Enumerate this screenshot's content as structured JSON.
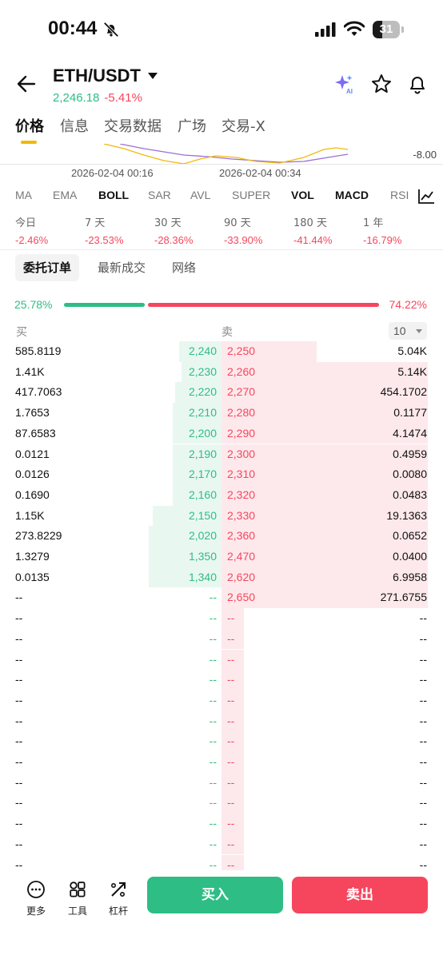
{
  "status_bar": {
    "time": "00:44",
    "battery": "31",
    "icons": [
      "bell-slash-icon",
      "signal-icon",
      "wifi-icon",
      "battery-icon"
    ]
  },
  "header": {
    "pair": "ETH/USDT",
    "price": "2,246.18",
    "change": "-5.41%",
    "icons": [
      "back-arrow-icon",
      "caret-down-icon",
      "ai-sparkle-icon",
      "star-icon",
      "bell-icon"
    ]
  },
  "main_tabs": [
    "价格",
    "信息",
    "交易数据",
    "广场",
    "交易-X"
  ],
  "chart": {
    "y_label": "-8.00",
    "x_labels": [
      "2026-02-04 00:16",
      "2026-02-04 00:34"
    ]
  },
  "indicators": [
    "MA",
    "EMA",
    "BOLL",
    "SAR",
    "AVL",
    "SUPER",
    "VOL",
    "MACD",
    "RSI"
  ],
  "performance": [
    {
      "label": "今日",
      "value": "-2.46%"
    },
    {
      "label": "7 天",
      "value": "-23.53%"
    },
    {
      "label": "30 天",
      "value": "-28.36%"
    },
    {
      "label": "90 天",
      "value": "-33.90%"
    },
    {
      "label": "180 天",
      "value": "-41.44%"
    },
    {
      "label": "1 年",
      "value": "-16.79%"
    }
  ],
  "sub_tabs": [
    "委托订单",
    "最新成交",
    "网络"
  ],
  "ratio": {
    "buy": "25.78%",
    "sell": "74.22%",
    "buy_fraction": 0.2578
  },
  "orderbook": {
    "buy_header": "买",
    "sell_header": "卖",
    "depth": "10",
    "rows": [
      {
        "bid_qty": "585.8119",
        "bid_price": "2,240",
        "ask_price": "2,250",
        "ask_qty": "5.04K",
        "bid_depth": 0.19,
        "ask_depth": 0.43
      },
      {
        "bid_qty": "1.41K",
        "bid_price": "2,230",
        "ask_price": "2,260",
        "ask_qty": "5.14K",
        "bid_depth": 0.18,
        "ask_depth": 0.93
      },
      {
        "bid_qty": "417.7063",
        "bid_price": "2,220",
        "ask_price": "2,270",
        "ask_qty": "454.1702",
        "bid_depth": 0.21,
        "ask_depth": 0.93
      },
      {
        "bid_qty": "1.7653",
        "bid_price": "2,210",
        "ask_price": "2,280",
        "ask_qty": "0.1177",
        "bid_depth": 0.22,
        "ask_depth": 0.93
      },
      {
        "bid_qty": "87.6583",
        "bid_price": "2,200",
        "ask_price": "2,290",
        "ask_qty": "4.1474",
        "bid_depth": 0.22,
        "ask_depth": 0.93
      },
      {
        "bid_qty": "0.0121",
        "bid_price": "2,190",
        "ask_price": "2,300",
        "ask_qty": "0.4959",
        "bid_depth": 0.22,
        "ask_depth": 0.93
      },
      {
        "bid_qty": "0.0126",
        "bid_price": "2,170",
        "ask_price": "2,310",
        "ask_qty": "0.0080",
        "bid_depth": 0.22,
        "ask_depth": 0.93
      },
      {
        "bid_qty": "0.1690",
        "bid_price": "2,160",
        "ask_price": "2,320",
        "ask_qty": "0.0483",
        "bid_depth": 0.22,
        "ask_depth": 0.93
      },
      {
        "bid_qty": "1.15K",
        "bid_price": "2,150",
        "ask_price": "2,330",
        "ask_qty": "19.1363",
        "bid_depth": 0.31,
        "ask_depth": 0.93
      },
      {
        "bid_qty": "273.8229",
        "bid_price": "2,020",
        "ask_price": "2,360",
        "ask_qty": "0.0652",
        "bid_depth": 0.33,
        "ask_depth": 0.93
      },
      {
        "bid_qty": "1.3279",
        "bid_price": "1,350",
        "ask_price": "2,470",
        "ask_qty": "0.0400",
        "bid_depth": 0.33,
        "ask_depth": 0.93
      },
      {
        "bid_qty": "0.0135",
        "bid_price": "1,340",
        "ask_price": "2,620",
        "ask_qty": "6.9958",
        "bid_depth": 0.33,
        "ask_depth": 0.93
      },
      {
        "bid_qty": "--",
        "bid_price": "--",
        "ask_price": "2,650",
        "ask_qty": "271.6755",
        "bid_depth": 0,
        "ask_depth": 0.93
      },
      {
        "bid_qty": "--",
        "bid_price": "--",
        "ask_price": "--",
        "ask_qty": "--",
        "bid_depth": 0,
        "ask_depth": 0.1
      },
      {
        "bid_qty": "--",
        "bid_price": "--",
        "ask_price": "--",
        "ask_qty": "--",
        "bid_depth": 0,
        "ask_depth": 0.1
      },
      {
        "bid_qty": "--",
        "bid_price": "--",
        "ask_price": "--",
        "ask_qty": "--",
        "bid_depth": 0,
        "ask_depth": 0.1
      },
      {
        "bid_qty": "--",
        "bid_price": "--",
        "ask_price": "--",
        "ask_qty": "--",
        "bid_depth": 0,
        "ask_depth": 0.1
      },
      {
        "bid_qty": "--",
        "bid_price": "--",
        "ask_price": "--",
        "ask_qty": "--",
        "bid_depth": 0,
        "ask_depth": 0.1
      },
      {
        "bid_qty": "--",
        "bid_price": "--",
        "ask_price": "--",
        "ask_qty": "--",
        "bid_depth": 0,
        "ask_depth": 0.1
      },
      {
        "bid_qty": "--",
        "bid_price": "--",
        "ask_price": "--",
        "ask_qty": "--",
        "bid_depth": 0,
        "ask_depth": 0.1
      },
      {
        "bid_qty": "--",
        "bid_price": "--",
        "ask_price": "--",
        "ask_qty": "--",
        "bid_depth": 0,
        "ask_depth": 0.1
      },
      {
        "bid_qty": "--",
        "bid_price": "--",
        "ask_price": "--",
        "ask_qty": "--",
        "bid_depth": 0,
        "ask_depth": 0.1
      },
      {
        "bid_qty": "--",
        "bid_price": "--",
        "ask_price": "--",
        "ask_qty": "--",
        "bid_depth": 0,
        "ask_depth": 0.1
      },
      {
        "bid_qty": "--",
        "bid_price": "--",
        "ask_price": "--",
        "ask_qty": "--",
        "bid_depth": 0,
        "ask_depth": 0.1
      },
      {
        "bid_qty": "--",
        "bid_price": "--",
        "ask_price": "--",
        "ask_qty": "--",
        "bid_depth": 0,
        "ask_depth": 0.1
      },
      {
        "bid_qty": "--",
        "bid_price": "--",
        "ask_price": "--",
        "ask_qty": "--",
        "bid_depth": 0,
        "ask_depth": 0.1
      }
    ]
  },
  "bottom_bar": {
    "more": "更多",
    "tools": "工具",
    "leverage": "杠杆",
    "buy": "买入",
    "sell": "卖出"
  },
  "colors": {
    "buy": "#2ebd85",
    "sell": "#f6465d",
    "accent": "#f0b90b"
  }
}
